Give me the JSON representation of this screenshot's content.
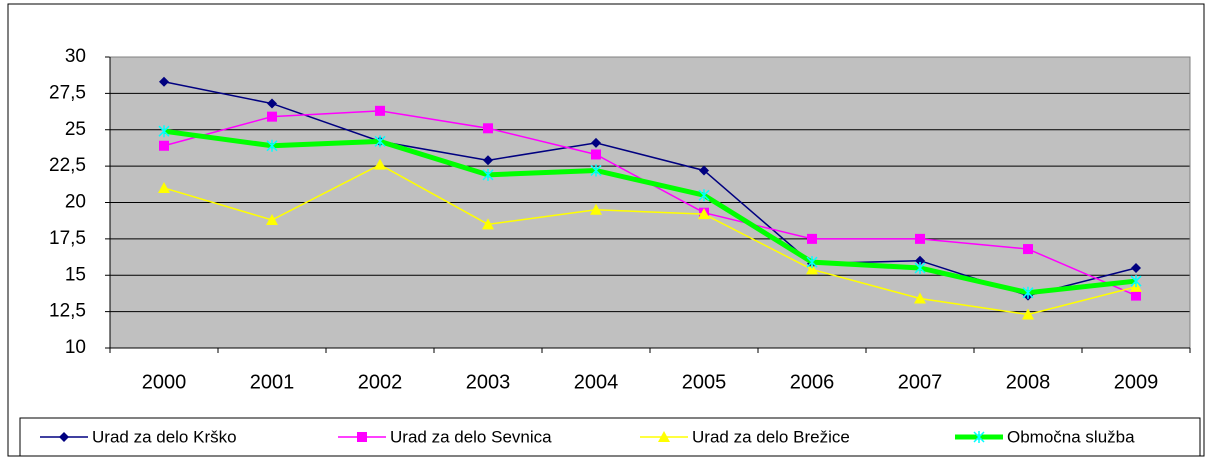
{
  "chart_data": {
    "type": "line",
    "categories": [
      "2000",
      "2001",
      "2002",
      "2003",
      "2004",
      "2005",
      "2006",
      "2007",
      "2008",
      "2009"
    ],
    "series": [
      {
        "name": "Urad za delo Krško",
        "color": "#000080",
        "marker": "diamond",
        "values": [
          28.3,
          26.8,
          24.2,
          22.9,
          24.1,
          22.2,
          15.8,
          16.0,
          13.6,
          15.5
        ]
      },
      {
        "name": "Urad za delo Sevnica",
        "color": "#ff00ff",
        "marker": "square",
        "values": [
          23.9,
          25.9,
          26.3,
          25.1,
          23.3,
          19.3,
          17.5,
          17.5,
          16.8,
          13.6
        ]
      },
      {
        "name": "Urad za delo Brežice",
        "color": "#ffff00",
        "marker": "triangle",
        "values": [
          21.0,
          18.8,
          22.6,
          18.5,
          19.5,
          19.2,
          15.4,
          13.4,
          12.3,
          14.2
        ]
      },
      {
        "name": "Območna služba",
        "color": "#00ff00",
        "marker": "x",
        "values": [
          24.9,
          23.9,
          24.2,
          21.9,
          22.2,
          20.5,
          15.9,
          15.5,
          13.8,
          14.6
        ]
      }
    ],
    "ylim": [
      10,
      30
    ],
    "yticks": [
      10,
      {
        "value": 12.5,
        "label": "12,5"
      },
      15,
      {
        "value": 17.5,
        "label": "17,5"
      },
      20,
      {
        "value": 22.5,
        "label": "22,5"
      },
      25,
      {
        "value": 27.5,
        "label": "27,5"
      },
      30
    ],
    "grid": true,
    "legend": "bottom"
  }
}
